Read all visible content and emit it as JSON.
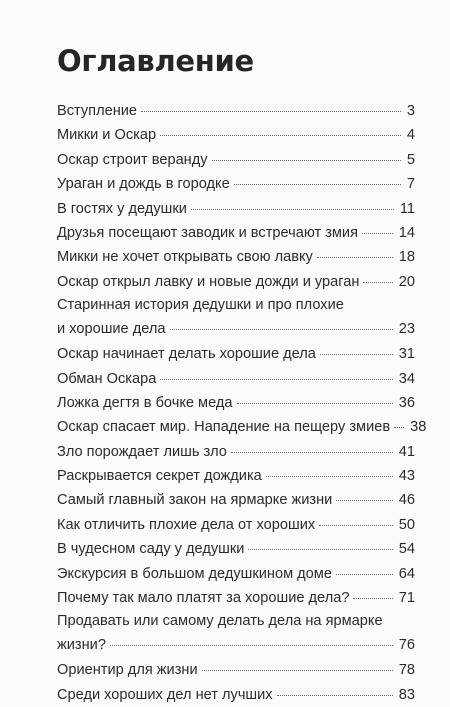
{
  "title": "Оглавление",
  "entries": [
    {
      "lines": [
        "Вступление"
      ],
      "page": "3"
    },
    {
      "lines": [
        "Микки и Оскар"
      ],
      "page": "4"
    },
    {
      "lines": [
        "Оскар строит веранду"
      ],
      "page": "5"
    },
    {
      "lines": [
        "Ураган и дождь в городке"
      ],
      "page": "7"
    },
    {
      "lines": [
        "В гостях у дедушки"
      ],
      "page": "11"
    },
    {
      "lines": [
        "Друзья посещают заводик и встречают змия"
      ],
      "page": "14"
    },
    {
      "lines": [
        "Микки не хочет открывать свою лавку"
      ],
      "page": "18"
    },
    {
      "lines": [
        "Оскар открыл лавку и новые дожди и ураган"
      ],
      "page": "20"
    },
    {
      "lines": [
        "Старинная история дедушки и про плохие",
        "и хорошие дела"
      ],
      "page": "23"
    },
    {
      "lines": [
        "Оскар начинает делать хорошие дела"
      ],
      "page": "31"
    },
    {
      "lines": [
        "Обман Оскара"
      ],
      "page": "34"
    },
    {
      "lines": [
        "Ложка дегтя в бочке меда"
      ],
      "page": "36"
    },
    {
      "lines": [
        "Оскар спасает мир. Нападение на пещеру змиев"
      ],
      "page": "38"
    },
    {
      "lines": [
        "Зло порождает лишь зло"
      ],
      "page": "41"
    },
    {
      "lines": [
        "Раскрывается секрет дождика"
      ],
      "page": "43"
    },
    {
      "lines": [
        "Самый главный закон на ярмарке жизни"
      ],
      "page": "46"
    },
    {
      "lines": [
        "Как отличить плохие дела от хороших"
      ],
      "page": "50"
    },
    {
      "lines": [
        "В чудесном саду у дедушки"
      ],
      "page": "54"
    },
    {
      "lines": [
        "Экскурсия в большом дедушкином доме"
      ],
      "page": "64"
    },
    {
      "lines": [
        "Почему так мало платят за хорошие дела?"
      ],
      "page": "71"
    },
    {
      "lines": [
        "Продавать или самому делать дела на ярмарке",
        "жизни?"
      ],
      "page": "76"
    },
    {
      "lines": [
        "Ориентир для жизни"
      ],
      "page": "78"
    },
    {
      "lines": [
        "Среди хороших дел нет лучших"
      ],
      "page": "83"
    }
  ]
}
